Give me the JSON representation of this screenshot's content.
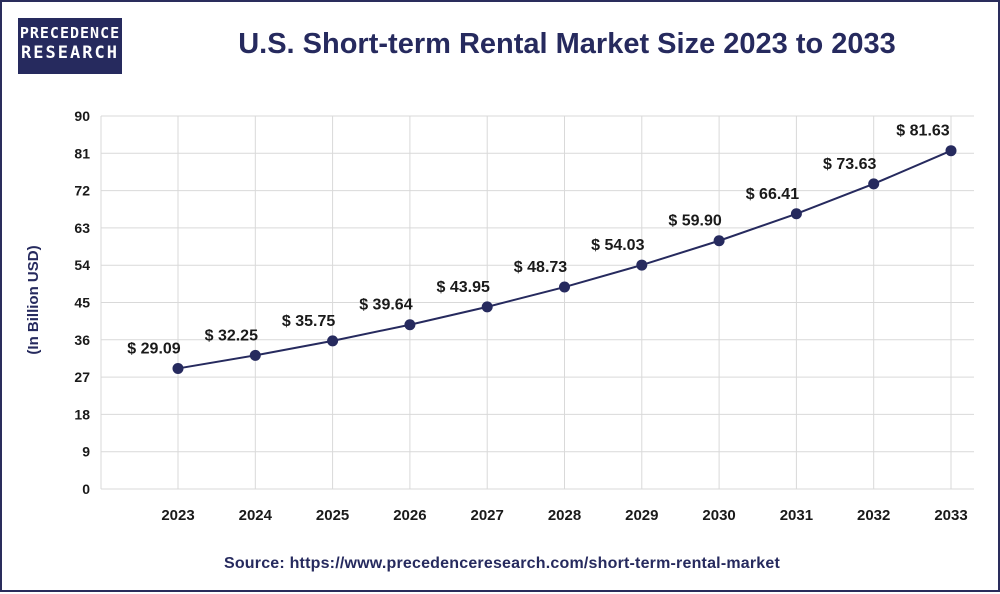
{
  "brand": {
    "line1": "PRECEDENCE",
    "line2": "RESEARCH"
  },
  "source": "Source: https://www.precedenceresearch.com/short-term-rental-market",
  "colors": {
    "brand": "#262a5e",
    "line": "#262a5e",
    "grid": "#d9d9d9"
  },
  "chart_data": {
    "type": "line",
    "title": "U.S. Short-term Rental Market Size 2023 to 2033",
    "ylabel": "(In Billion USD)",
    "xlabel": "",
    "ylim": [
      0,
      90
    ],
    "yticks": [
      "0",
      "9",
      "18",
      "27",
      "36",
      "45",
      "54",
      "63",
      "72",
      "81",
      "90"
    ],
    "grid": true,
    "categories": [
      "2023",
      "2024",
      "2025",
      "2026",
      "2027",
      "2028",
      "2029",
      "2030",
      "2031",
      "2032",
      "2033"
    ],
    "values": [
      29.09,
      32.25,
      35.75,
      39.64,
      43.95,
      48.73,
      54.03,
      59.9,
      66.41,
      73.63,
      81.63
    ],
    "data_labels": [
      "$ 29.09",
      "$ 32.25",
      "$ 35.75",
      "$ 39.64",
      "$ 43.95",
      "$ 48.73",
      "$ 54.03",
      "$ 59.90",
      "$ 66.41",
      "$ 73.63",
      "$ 81.63"
    ]
  }
}
